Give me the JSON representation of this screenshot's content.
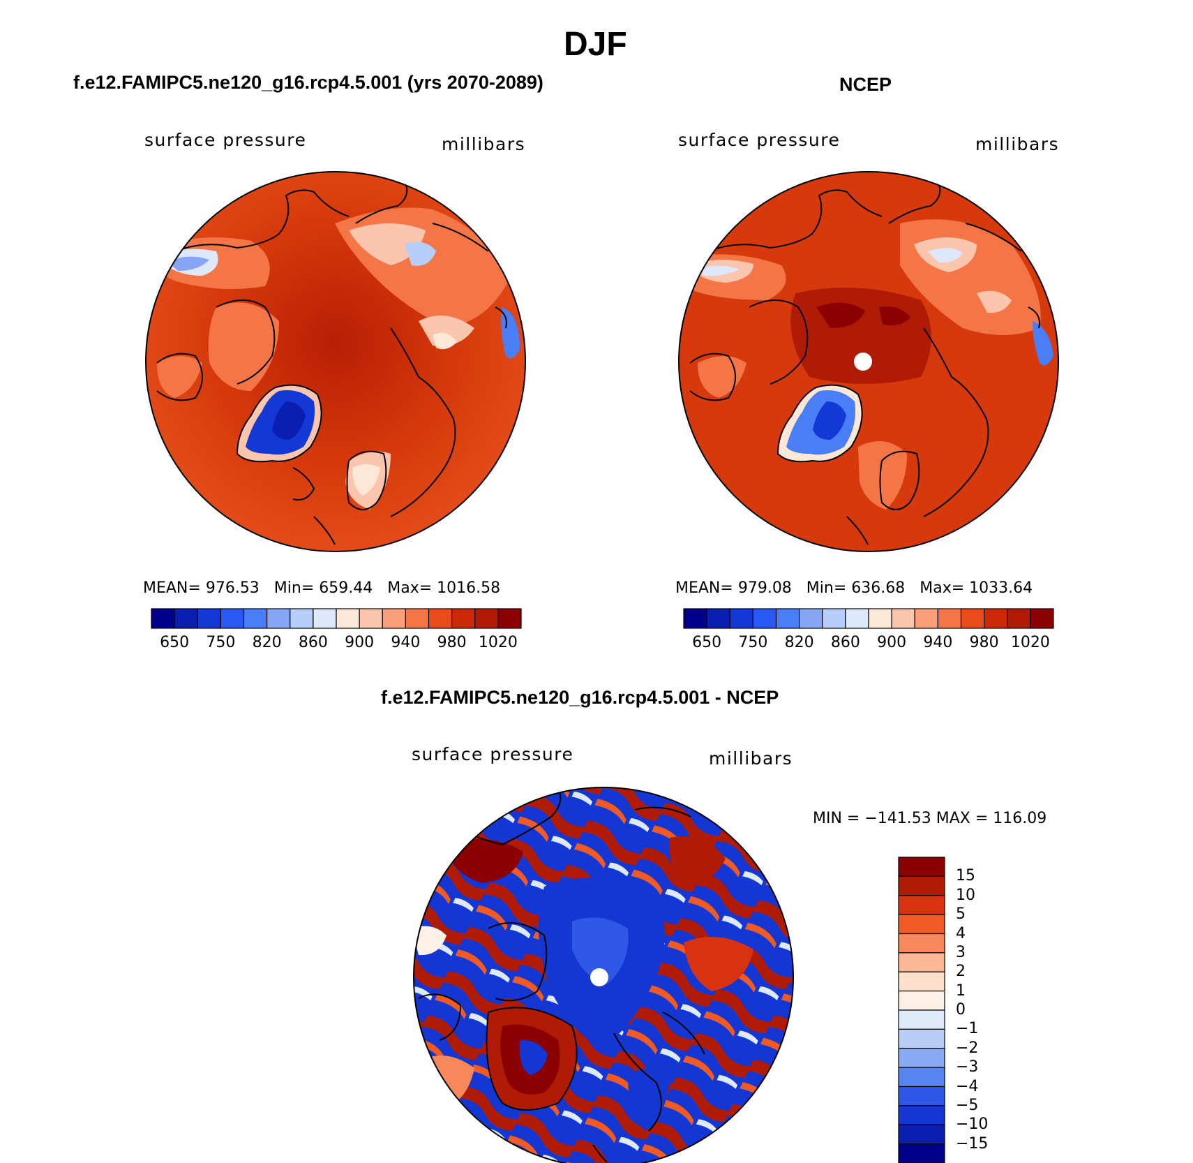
{
  "figure": {
    "title": "DJF"
  },
  "panels": [
    {
      "title": "f.e12.FAMIPC5.ne120_g16.rcp4.5.001 (yrs 2070-2089)",
      "variable": "surface pressure",
      "units": "millibars",
      "stats": {
        "mean_label": "MEAN=",
        "mean": "976.53",
        "min_label": "Min=",
        "min": "659.44",
        "max_label": "Max=",
        "max": "1016.58"
      },
      "has_pole_hole": false
    },
    {
      "title": "NCEP",
      "variable": "surface pressure",
      "units": "millibars",
      "stats": {
        "mean_label": "MEAN=",
        "mean": "979.08",
        "min_label": "Min=",
        "min": "636.68",
        "max_label": "Max=",
        "max": "1033.64"
      },
      "has_pole_hole": true
    }
  ],
  "diff_panel": {
    "title": "f.e12.FAMIPC5.ne120_g16.rcp4.5.001 - NCEP",
    "variable": "surface pressure",
    "units": "millibars",
    "minmax": "MIN = −141.53 MAX = 116.09",
    "has_pole_hole": true
  },
  "colorbar_abs": {
    "colors": [
      "#00008b",
      "#0a1fb0",
      "#1338d6",
      "#2a5af5",
      "#4a7ef7",
      "#86a6f5",
      "#b7cdfa",
      "#dde9fb",
      "#fde8d8",
      "#fbc6ad",
      "#f9a07b",
      "#f47646",
      "#e94b1a",
      "#cc2a06",
      "#b01b05",
      "#8b0000"
    ],
    "tick_labels": [
      "650",
      "750",
      "820",
      "860",
      "900",
      "940",
      "980",
      "1020"
    ]
  },
  "colorbar_diff": {
    "colors": [
      "#8b0000",
      "#b01b05",
      "#d83210",
      "#f05a25",
      "#f8875a",
      "#fbb894",
      "#fde0cc",
      "#fdf0e6",
      "#dfeaf8",
      "#b8cdf8",
      "#8aaaf5",
      "#5884f2",
      "#3058e6",
      "#1436d2",
      "#0a1fb0",
      "#00008b"
    ],
    "labels": [
      "15",
      "10",
      "5",
      "4",
      "3",
      "2",
      "1",
      "0",
      "−1",
      "−2",
      "−3",
      "−4",
      "−5",
      "−10",
      "−15"
    ]
  }
}
